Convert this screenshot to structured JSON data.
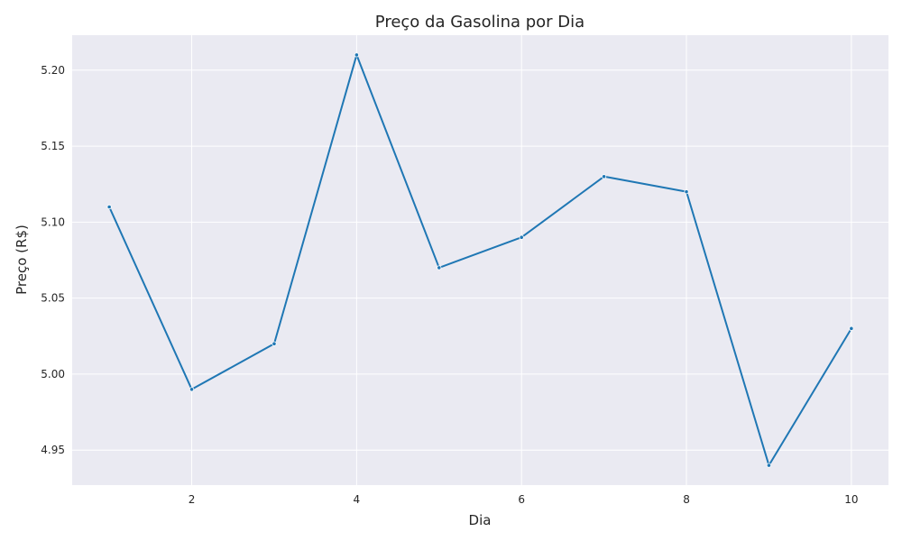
{
  "chart_data": {
    "type": "line",
    "title": "Preço da Gasolina por Dia",
    "xlabel": "Dia",
    "ylabel": "Preço (R$)",
    "x": [
      1,
      2,
      3,
      4,
      5,
      6,
      7,
      8,
      9,
      10
    ],
    "series": [
      {
        "values": [
          5.11,
          4.99,
          5.02,
          5.21,
          5.07,
          5.09,
          5.13,
          5.12,
          4.94,
          5.03
        ]
      }
    ],
    "xticks": [
      2,
      4,
      6,
      8,
      10
    ],
    "xtick_labels": [
      "2",
      "4",
      "6",
      "8",
      "10"
    ],
    "yticks": [
      4.95,
      5.0,
      5.05,
      5.1,
      5.15,
      5.2
    ],
    "ytick_labels": [
      "4.95",
      "5.00",
      "5.05",
      "5.10",
      "5.15",
      "5.20"
    ],
    "xlim": [
      0.55,
      10.45
    ],
    "ylim": [
      4.927,
      5.223
    ],
    "grid": true,
    "colors": {
      "line": "#1f77b4",
      "plot_background": "#eaeaf2",
      "grid": "#ffffff"
    }
  }
}
